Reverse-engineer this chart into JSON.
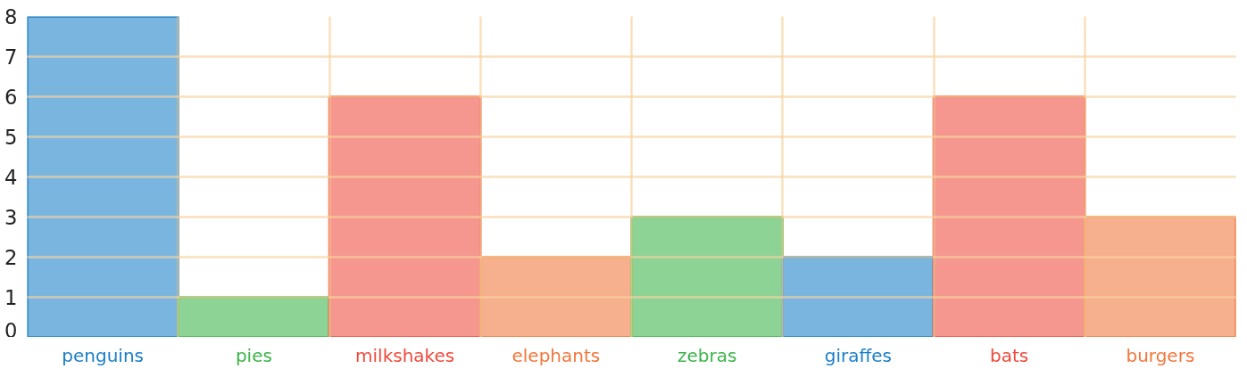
{
  "chart_data": {
    "type": "bar",
    "categories": [
      "penguins",
      "pies",
      "milkshakes",
      "elephants",
      "zebras",
      "giraffes",
      "bats",
      "burgers"
    ],
    "values": [
      8,
      1,
      6,
      2,
      3,
      2,
      6,
      3
    ],
    "colors": [
      "#1a7fc8",
      "#3cb44a",
      "#ee4b3c",
      "#f2773b",
      "#3cb44a",
      "#1a7fc8",
      "#ee4b3c",
      "#f2773b"
    ],
    "ylim": [
      0,
      8
    ],
    "yticks": [
      0,
      1,
      2,
      3,
      4,
      5,
      6,
      7,
      8
    ],
    "grid": true
  }
}
